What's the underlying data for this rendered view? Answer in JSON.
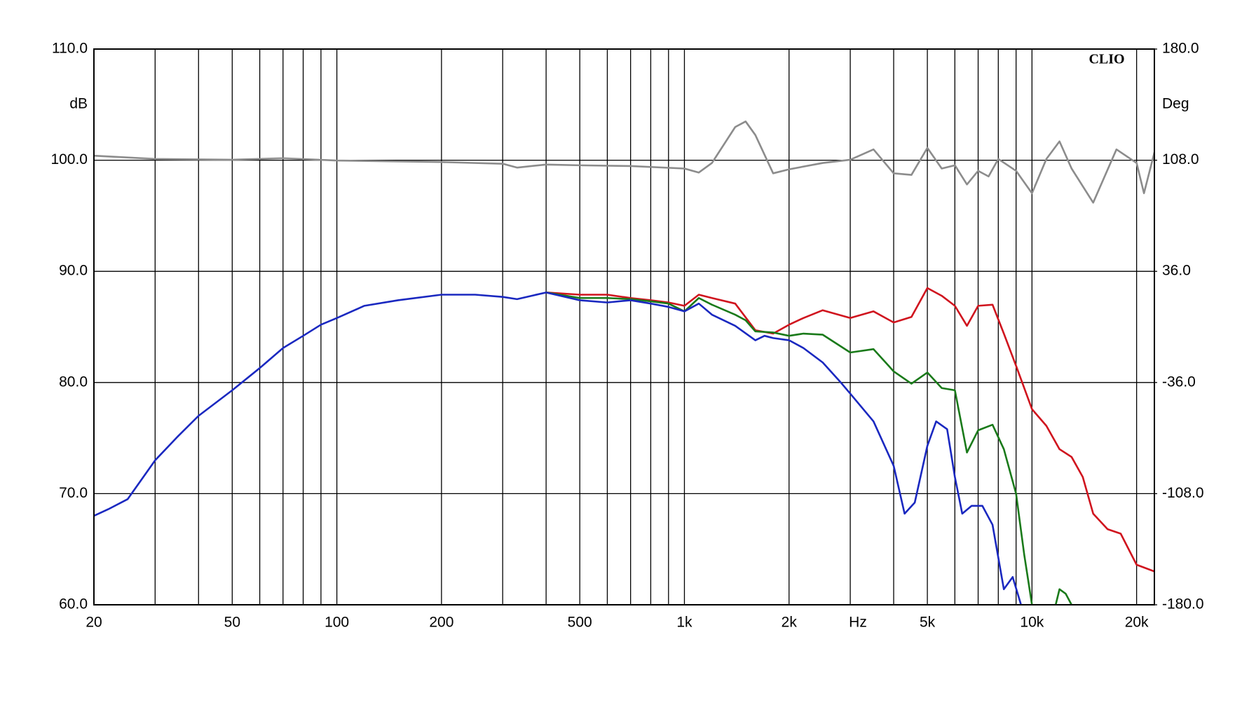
{
  "chart_data": {
    "type": "line",
    "watermark": "CLIO",
    "y_label": "dB",
    "y2_label": "Deg",
    "x_label": "Hz",
    "xscale": "log",
    "grid": true,
    "xlim": [
      20,
      22500
    ],
    "xticks": [
      20,
      50,
      100,
      200,
      500,
      {
        "value": 1000,
        "label": "1k"
      },
      {
        "value": 2000,
        "label": "2k"
      },
      {
        "value": 5000,
        "label": "5k"
      },
      {
        "value": 10000,
        "label": "10k"
      },
      {
        "value": 20000,
        "label": "20k"
      }
    ],
    "xgrid": [
      30,
      40,
      60,
      70,
      80,
      90,
      300,
      400,
      600,
      700,
      800,
      900,
      3000,
      4000,
      6000,
      7000,
      8000,
      9000
    ],
    "ylim": [
      60,
      110
    ],
    "yticks": [
      {
        "value": 60,
        "label": "60.0"
      },
      {
        "value": 70,
        "label": "70.0"
      },
      {
        "value": 80,
        "label": "80.0"
      },
      {
        "value": 90,
        "label": "90.0"
      },
      {
        "value": 100,
        "label": "100.0"
      },
      {
        "value": 110,
        "label": "110.0"
      }
    ],
    "y2lim": [
      -180,
      180
    ],
    "y2ticks": [
      {
        "value": -180,
        "label": "-180.0"
      },
      {
        "value": -108,
        "label": "-108.0"
      },
      {
        "value": -36,
        "label": "-36.0"
      },
      {
        "value": 36,
        "label": "36.0"
      },
      {
        "value": 108,
        "label": "108.0"
      },
      {
        "value": 180,
        "label": "180.0"
      }
    ],
    "series": [
      {
        "color": "#8c8c8c",
        "axis": "y2",
        "x": [
          20,
          30,
          50,
          70,
          100,
          200,
          300,
          330,
          400,
          500,
          700,
          1000,
          1100,
          1200,
          1400,
          1500,
          1600,
          1800,
          2000,
          2500,
          3000,
          3500,
          4000,
          4500,
          5000,
          5500,
          6000,
          6500,
          7000,
          7500,
          8000,
          9000,
          10000,
          11000,
          12000,
          13000,
          15000,
          17500,
          20000,
          21000,
          22500
        ],
        "values": [
          110.9,
          108.8,
          108.3,
          109.3,
          107.8,
          106.8,
          105.7,
          103.2,
          105.2,
          104.7,
          104.2,
          102.6,
          100.0,
          106.2,
          129.5,
          133.1,
          124.3,
          99.5,
          102.1,
          106.2,
          108.3,
          115.0,
          99.5,
          98.5,
          116.0,
          102.6,
          104.7,
          92.3,
          101.1,
          97.5,
          108.8,
          101.1,
          86.6,
          108.8,
          120.2,
          102.6,
          80.5,
          115.0,
          106.2,
          86.6,
          113.0
        ]
      },
      {
        "color": "#d0141e",
        "x": [
          400,
          500,
          600,
          700,
          800,
          900,
          1000,
          1100,
          1200,
          1400,
          1600,
          1800,
          2000,
          2200,
          2500,
          3000,
          3500,
          4000,
          4500,
          5000,
          5500,
          6000,
          6500,
          7000,
          7700,
          8300,
          9000,
          10000,
          11000,
          12000,
          13000,
          14000,
          15000,
          16500,
          18000,
          20000,
          22500
        ],
        "values": [
          88.1,
          87.9,
          87.9,
          87.6,
          87.4,
          87.2,
          86.9,
          87.9,
          87.6,
          87.1,
          84.7,
          84.4,
          85.2,
          85.8,
          86.5,
          85.8,
          86.4,
          85.4,
          85.9,
          88.5,
          87.8,
          86.9,
          85.1,
          86.9,
          87.0,
          84.4,
          81.5,
          77.6,
          76.1,
          74.0,
          73.3,
          71.5,
          68.2,
          66.8,
          66.4,
          63.6,
          63.0
        ]
      },
      {
        "color": "#1a7a1a",
        "x": [
          400,
          500,
          600,
          700,
          800,
          900,
          1000,
          1100,
          1200,
          1400,
          1500,
          1600,
          1800,
          2000,
          2200,
          2500,
          3000,
          3500,
          4000,
          4500,
          5000,
          5500,
          6000,
          6500,
          7000,
          7700,
          8300,
          9000,
          9500,
          10000,
          11000,
          11700,
          12000,
          12500,
          13000
        ],
        "values": [
          88.1,
          87.6,
          87.6,
          87.5,
          87.3,
          87.1,
          86.4,
          87.6,
          87.0,
          86.1,
          85.6,
          84.6,
          84.5,
          84.2,
          84.4,
          84.3,
          82.7,
          83.0,
          81.0,
          79.9,
          80.9,
          79.5,
          79.3,
          73.7,
          75.7,
          76.2,
          74.0,
          70.0,
          64.5,
          60.0,
          null,
          60.0,
          61.4,
          61.0,
          60.0
        ]
      },
      {
        "color": "#1a28c0",
        "x": [
          20,
          22,
          25,
          30,
          35,
          40,
          50,
          60,
          70,
          80,
          90,
          100,
          120,
          150,
          200,
          250,
          300,
          330,
          400,
          500,
          600,
          700,
          800,
          900,
          1000,
          1100,
          1200,
          1400,
          1600,
          1700,
          1800,
          2000,
          2200,
          2500,
          2800,
          3000,
          3500,
          4000,
          4300,
          4600,
          5000,
          5300,
          5700,
          6000,
          6300,
          6700,
          7200,
          7700,
          8300,
          8800,
          9300
        ],
        "values": [
          68.0,
          68.6,
          69.5,
          73.0,
          75.2,
          77.0,
          79.3,
          81.3,
          83.1,
          84.2,
          85.2,
          85.8,
          86.9,
          87.4,
          87.9,
          87.9,
          87.7,
          87.5,
          88.1,
          87.4,
          87.2,
          87.4,
          87.1,
          86.8,
          86.4,
          87.1,
          86.1,
          85.1,
          83.8,
          84.2,
          84.0,
          83.8,
          83.1,
          81.8,
          80.1,
          79.0,
          76.5,
          72.5,
          68.2,
          69.2,
          74.3,
          76.5,
          75.8,
          71.5,
          68.2,
          68.9,
          68.9,
          67.2,
          61.4,
          62.5,
          60.0
        ]
      }
    ]
  }
}
